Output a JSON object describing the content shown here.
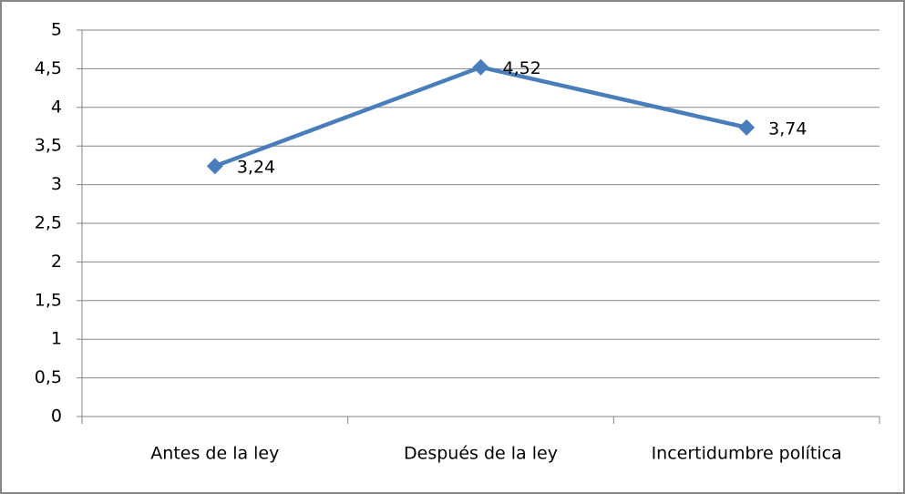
{
  "chart_data": {
    "type": "line",
    "categories": [
      "Antes de la ley",
      "Después de la ley",
      "Incertidumbre política"
    ],
    "series": [
      {
        "color": "#4a7ebb",
        "values": [
          3.24,
          4.52,
          3.74
        ],
        "value_labels": [
          "3,24",
          "4,52",
          "3,74"
        ]
      }
    ],
    "ylim": [
      0,
      5
    ],
    "yticks": [
      0,
      {
        "value": 0.5,
        "label": "0,5"
      },
      1,
      {
        "value": 1.5,
        "label": "1,5"
      },
      2,
      {
        "value": 2.5,
        "label": "2,5"
      },
      3,
      {
        "value": 3.5,
        "label": "3,5"
      },
      4,
      {
        "value": 4.5,
        "label": "4,5"
      },
      5
    ],
    "grid": true
  }
}
